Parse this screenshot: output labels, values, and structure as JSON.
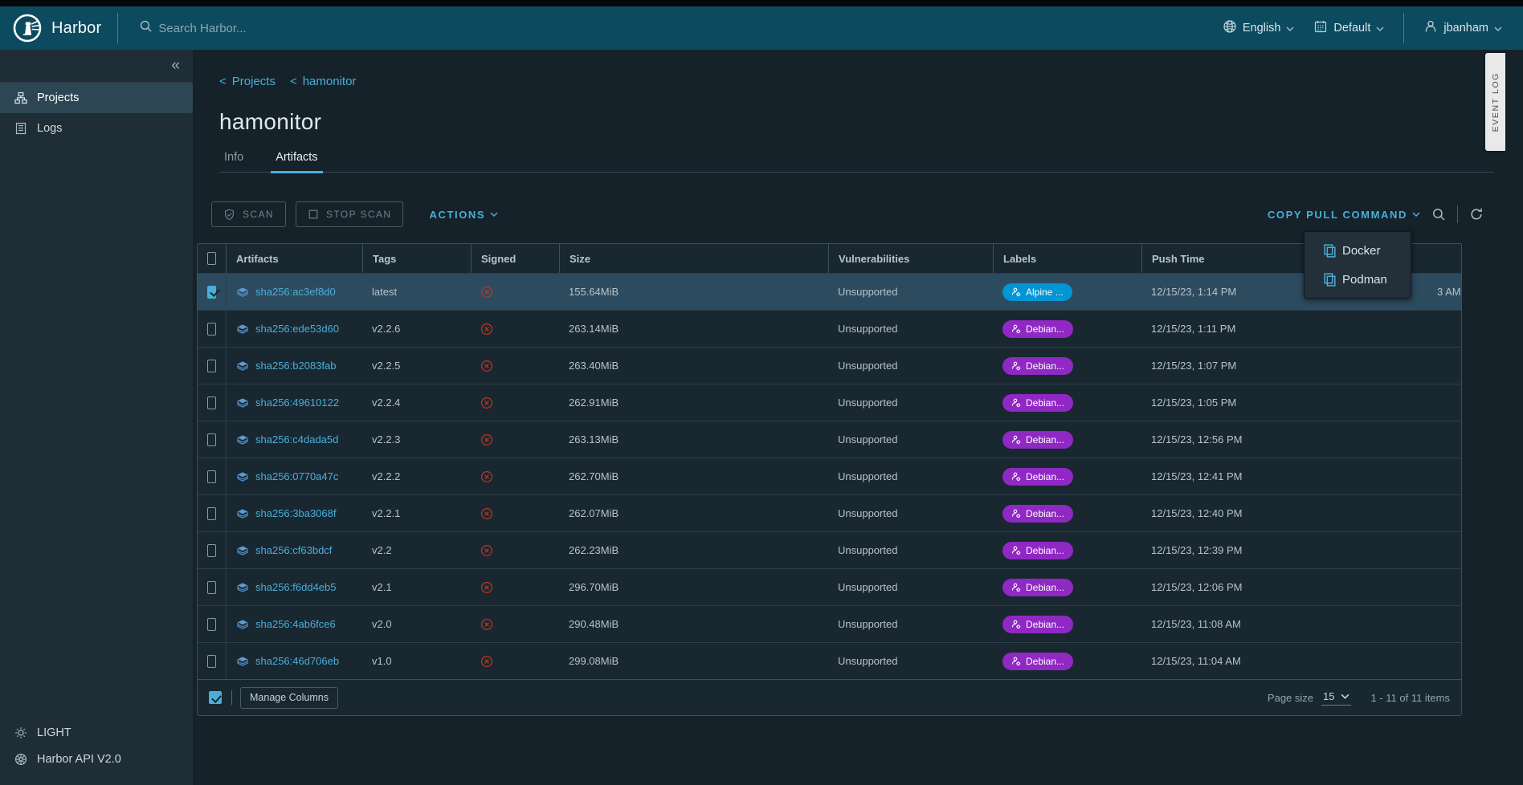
{
  "colors": {
    "accent": "#49afd9",
    "header_bg": "#0c4b5f",
    "sidebar_bg": "#1e2d36",
    "content_bg": "#15222a",
    "selected_row": "#2d4b5e",
    "danger": "#c0351f",
    "label_alpine": "#0095d3",
    "label_debian": "#9028c4"
  },
  "header": {
    "brand": "Harbor",
    "search_placeholder": "Search Harbor...",
    "language": "English",
    "theme": "Default",
    "user": "jbanham"
  },
  "sidebar": {
    "collapse_glyph": "«",
    "items": [
      {
        "label": "Projects",
        "icon": "org-tree-icon",
        "selected": true
      },
      {
        "label": "Logs",
        "icon": "list-icon",
        "selected": false
      }
    ],
    "footer": [
      {
        "label": "LIGHT",
        "icon": "theme-light-icon"
      },
      {
        "label": "Harbor API V2.0",
        "icon": "harbor-wheel-icon"
      }
    ]
  },
  "event_log": {
    "label": "EVENT LOG"
  },
  "breadcrumb": {
    "prefix": "<",
    "items": [
      "Projects",
      "hamonitor"
    ]
  },
  "page": {
    "title": "hamonitor",
    "tabs": [
      {
        "label": "Info",
        "active": false
      },
      {
        "label": "Artifacts",
        "active": true
      }
    ]
  },
  "toolbar": {
    "scan": "SCAN",
    "stop_scan": "STOP SCAN",
    "actions": "ACTIONS",
    "copy_pull_command": "COPY PULL COMMAND"
  },
  "pull_menu": {
    "items": [
      {
        "label": "Docker",
        "icon": "copy-icon"
      },
      {
        "label": "Podman",
        "icon": "copy-icon"
      }
    ]
  },
  "table": {
    "columns": [
      "Artifacts",
      "Tags",
      "Signed",
      "Size",
      "Vulnerabilities",
      "Labels",
      "Push Time"
    ],
    "rows": [
      {
        "digest": "sha256:ac3ef8d0",
        "tag": "latest",
        "signed": "not-signed",
        "size": "155.64MiB",
        "vulnerabilities": "Unsupported",
        "label": {
          "text": "Alpine ...",
          "color": "#0095d3"
        },
        "push_time": "12/15/23, 1:14 PM",
        "pull_time_visible": "3 AM",
        "selected": true
      },
      {
        "digest": "sha256:ede53d60",
        "tag": "v2.2.6",
        "signed": "not-signed",
        "size": "263.14MiB",
        "vulnerabilities": "Unsupported",
        "label": {
          "text": "Debian...",
          "color": "#9028c4"
        },
        "push_time": "12/15/23, 1:11 PM",
        "selected": false
      },
      {
        "digest": "sha256:b2083fab",
        "tag": "v2.2.5",
        "signed": "not-signed",
        "size": "263.40MiB",
        "vulnerabilities": "Unsupported",
        "label": {
          "text": "Debian...",
          "color": "#9028c4"
        },
        "push_time": "12/15/23, 1:07 PM",
        "selected": false
      },
      {
        "digest": "sha256:49610122",
        "tag": "v2.2.4",
        "signed": "not-signed",
        "size": "262.91MiB",
        "vulnerabilities": "Unsupported",
        "label": {
          "text": "Debian...",
          "color": "#9028c4"
        },
        "push_time": "12/15/23, 1:05 PM",
        "selected": false
      },
      {
        "digest": "sha256:c4dada5d",
        "tag": "v2.2.3",
        "signed": "not-signed",
        "size": "263.13MiB",
        "vulnerabilities": "Unsupported",
        "label": {
          "text": "Debian...",
          "color": "#9028c4"
        },
        "push_time": "12/15/23, 12:56 PM",
        "selected": false
      },
      {
        "digest": "sha256:0770a47c",
        "tag": "v2.2.2",
        "signed": "not-signed",
        "size": "262.70MiB",
        "vulnerabilities": "Unsupported",
        "label": {
          "text": "Debian...",
          "color": "#9028c4"
        },
        "push_time": "12/15/23, 12:41 PM",
        "selected": false
      },
      {
        "digest": "sha256:3ba3068f",
        "tag": "v2.2.1",
        "signed": "not-signed",
        "size": "262.07MiB",
        "vulnerabilities": "Unsupported",
        "label": {
          "text": "Debian...",
          "color": "#9028c4"
        },
        "push_time": "12/15/23, 12:40 PM",
        "selected": false
      },
      {
        "digest": "sha256:cf63bdcf",
        "tag": "v2.2",
        "signed": "not-signed",
        "size": "262.23MiB",
        "vulnerabilities": "Unsupported",
        "label": {
          "text": "Debian...",
          "color": "#9028c4"
        },
        "push_time": "12/15/23, 12:39 PM",
        "selected": false
      },
      {
        "digest": "sha256:f6dd4eb5",
        "tag": "v2.1",
        "signed": "not-signed",
        "size": "296.70MiB",
        "vulnerabilities": "Unsupported",
        "label": {
          "text": "Debian...",
          "color": "#9028c4"
        },
        "push_time": "12/15/23, 12:06 PM",
        "selected": false
      },
      {
        "digest": "sha256:4ab6fce6",
        "tag": "v2.0",
        "signed": "not-signed",
        "size": "290.48MiB",
        "vulnerabilities": "Unsupported",
        "label": {
          "text": "Debian...",
          "color": "#9028c4"
        },
        "push_time": "12/15/23, 11:08 AM",
        "selected": false
      },
      {
        "digest": "sha256:46d706eb",
        "tag": "v1.0",
        "signed": "not-signed",
        "size": "299.08MiB",
        "vulnerabilities": "Unsupported",
        "label": {
          "text": "Debian...",
          "color": "#9028c4"
        },
        "push_time": "12/15/23, 11:04 AM",
        "selected": false
      }
    ],
    "footer": {
      "manage_columns": "Manage Columns",
      "page_size_label": "Page size",
      "page_size": "15",
      "range": "1 - 11 of 11 items"
    }
  }
}
